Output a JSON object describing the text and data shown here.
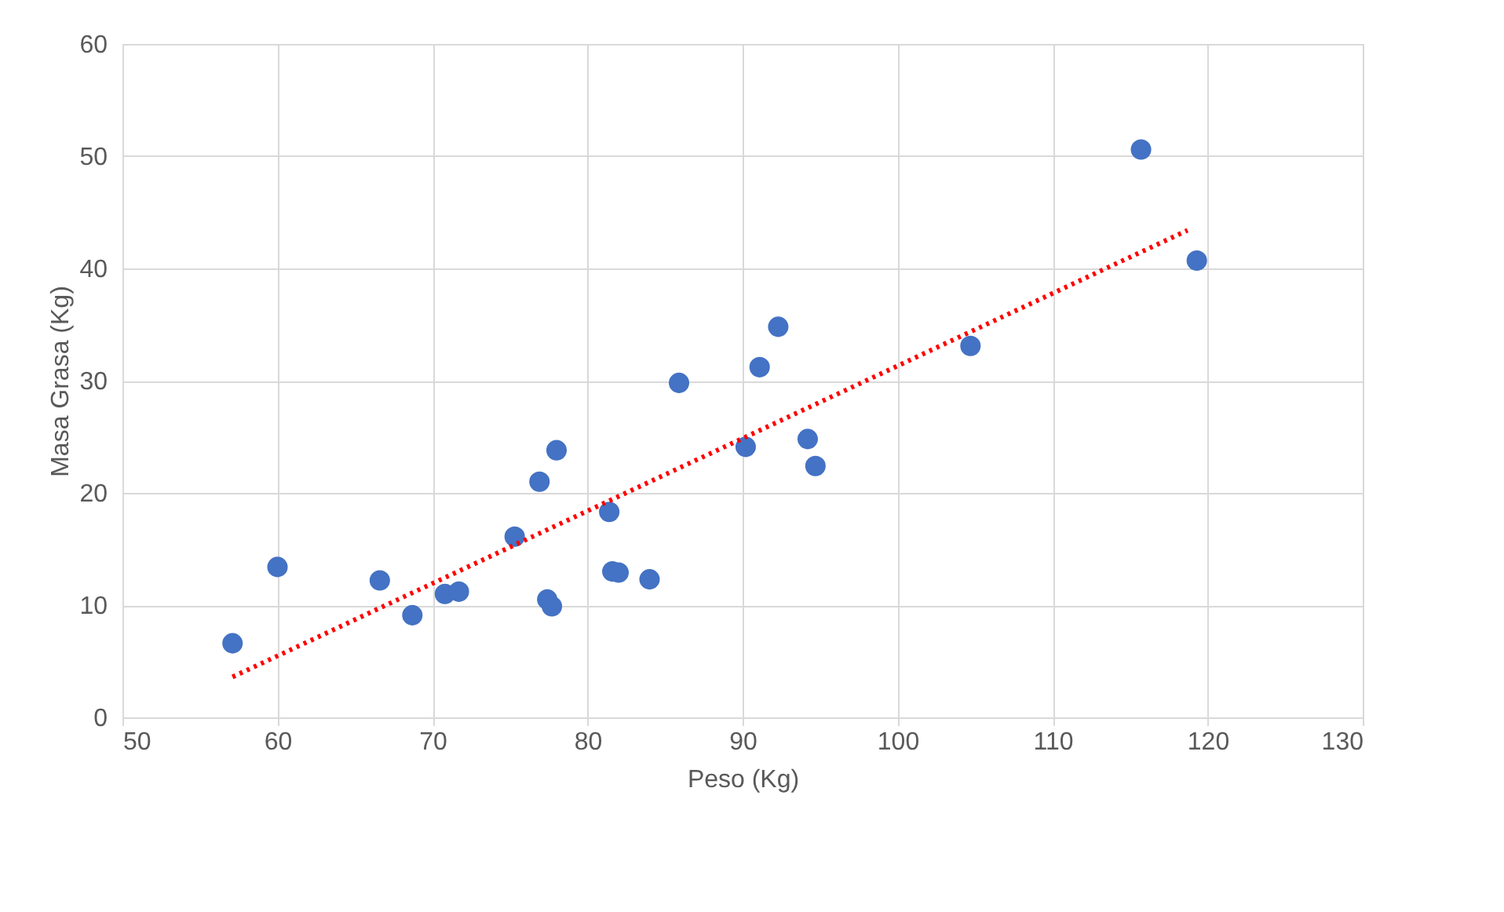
{
  "chart_data": {
    "type": "scatter",
    "xlabel": "Peso (Kg)",
    "ylabel": "Masa Grasa (Kg)",
    "xlim": [
      50,
      130
    ],
    "xticks": [
      50,
      60,
      70,
      80,
      90,
      100,
      110,
      120,
      130
    ],
    "ylim": [
      0,
      60
    ],
    "yticks": [
      0,
      10,
      20,
      30,
      40,
      50,
      60
    ],
    "grid": true,
    "series": [
      {
        "color": "#4472c4",
        "marker": "circle",
        "x": [
          57.1,
          60.0,
          66.6,
          68.7,
          70.8,
          71.7,
          75.3,
          76.9,
          77.4,
          77.7,
          78.0,
          81.4,
          81.6,
          82.0,
          84.0,
          85.9,
          90.2,
          91.1,
          92.3,
          94.2,
          94.7,
          104.7,
          115.7,
          119.3
        ],
        "values": [
          6.6,
          13.4,
          12.2,
          9.1,
          11.0,
          11.2,
          16.1,
          21.0,
          10.5,
          9.9,
          23.8,
          18.3,
          13.0,
          12.9,
          12.3,
          29.8,
          24.1,
          31.2,
          34.8,
          24.8,
          22.4,
          33.1,
          50.6,
          40.7
        ]
      },
      {
        "type": "line",
        "color": "#ff0000",
        "line_style": "dotted",
        "marker": "none",
        "x": [
          57.1,
          118.7
        ],
        "values": [
          3.6,
          43.4
        ]
      }
    ]
  }
}
